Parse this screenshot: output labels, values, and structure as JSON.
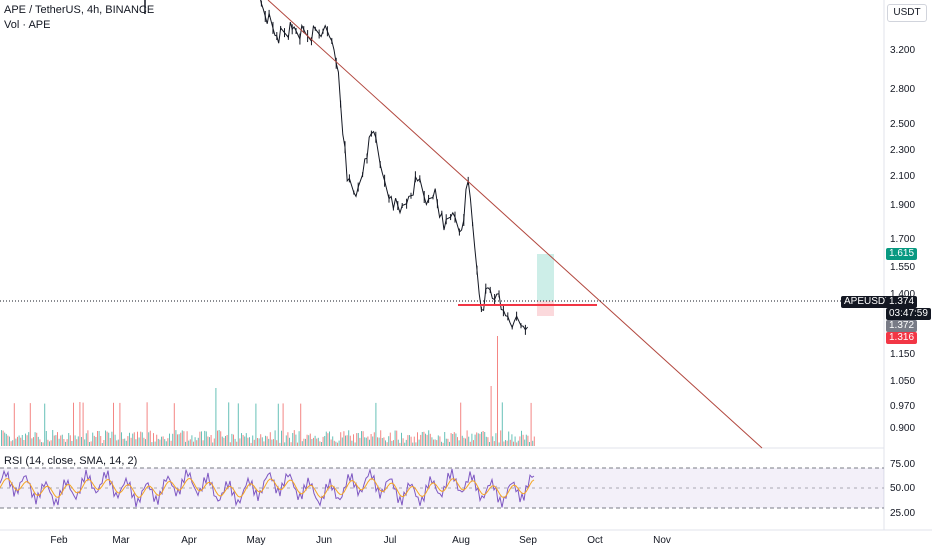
{
  "header": {
    "title": "APE / TetherUS, 4h, BINANCE",
    "volume_label": "Vol · APE",
    "currency": "USDT"
  },
  "rsi": {
    "label": "RSI (14, close, SMA, 14, 2)"
  },
  "price_tags": {
    "target": "1.615",
    "symbol": "APEUSDT",
    "last": "1.374",
    "countdown": "03:47:59",
    "entry": "1.372",
    "stop": "1.316"
  },
  "colors": {
    "candle": "#131722",
    "trendline": "#b2473e",
    "support": "#f23645",
    "vol_up": "#26a69a",
    "vol_down": "#ef5350",
    "rsi_line": "#7e57c2",
    "rsi_ma": "#f5a623",
    "target_zone": "#cdeee8",
    "stop_zone": "#fbd9dc"
  },
  "chart_data": {
    "type": "line",
    "title": "APE / TetherUS, 4h, BINANCE",
    "x_tick_labels": [
      "Feb",
      "Mar",
      "Apr",
      "May",
      "Jun",
      "Jul",
      "Aug",
      "Sep",
      "Oct",
      "Nov"
    ],
    "y_tick_labels": [
      "3.200",
      "2.800",
      "2.500",
      "2.300",
      "2.100",
      "1.900",
      "1.700",
      "1.550",
      "1.400",
      "1.150",
      "1.050",
      "0.970",
      "0.900"
    ],
    "y_scale": "log",
    "series": [
      {
        "x": [
          "2024-04-26",
          "2024-05-03",
          "2024-05-10",
          "2024-05-17",
          "2024-05-24",
          "2024-05-31",
          "2024-06-04",
          "2024-06-07",
          "2024-06-11",
          "2024-06-15",
          "2024-06-19",
          "2024-06-23",
          "2024-06-27",
          "2024-07-01",
          "2024-07-05",
          "2024-07-09",
          "2024-07-13",
          "2024-07-17",
          "2024-07-21",
          "2024-07-25",
          "2024-07-29",
          "2024-08-02",
          "2024-08-05",
          "2024-08-08",
          "2024-08-11",
          "2024-08-14",
          "2024-08-16",
          "2024-08-18",
          "2024-08-20",
          "2024-08-23",
          "2024-08-26",
          "2024-08-29",
          "2024-09-01"
        ],
        "values": [
          4.2,
          3.7,
          3.35,
          3.42,
          3.35,
          3.4,
          3.3,
          3.0,
          2.15,
          2.05,
          2.3,
          2.5,
          2.2,
          2.05,
          1.95,
          2.05,
          2.15,
          2.0,
          2.1,
          1.85,
          1.95,
          1.85,
          2.15,
          1.75,
          1.45,
          1.55,
          1.5,
          1.52,
          1.45,
          1.42,
          1.4,
          1.38,
          1.374
        ]
      }
    ],
    "trendline": {
      "from": {
        "x": "2024-04-20",
        "y": 5.0
      },
      "to": {
        "x": "2024-10-24",
        "y": 0.88
      }
    },
    "support": {
      "x_from": "2024-08-13",
      "x_to": "2024-09-15",
      "y": 1.355
    },
    "target_zone": {
      "x_from": "2024-09-02",
      "x_to": "2024-09-10",
      "y_top": 1.615,
      "y_bottom": 1.372
    },
    "stop_zone": {
      "x_from": "2024-09-02",
      "x_to": "2024-09-10",
      "y_top": 1.372,
      "y_bottom": 1.316
    },
    "rsi": {
      "levels": [
        75,
        50,
        25
      ],
      "tick_labels": [
        "75.00",
        "50.00",
        "25.00"
      ]
    }
  }
}
